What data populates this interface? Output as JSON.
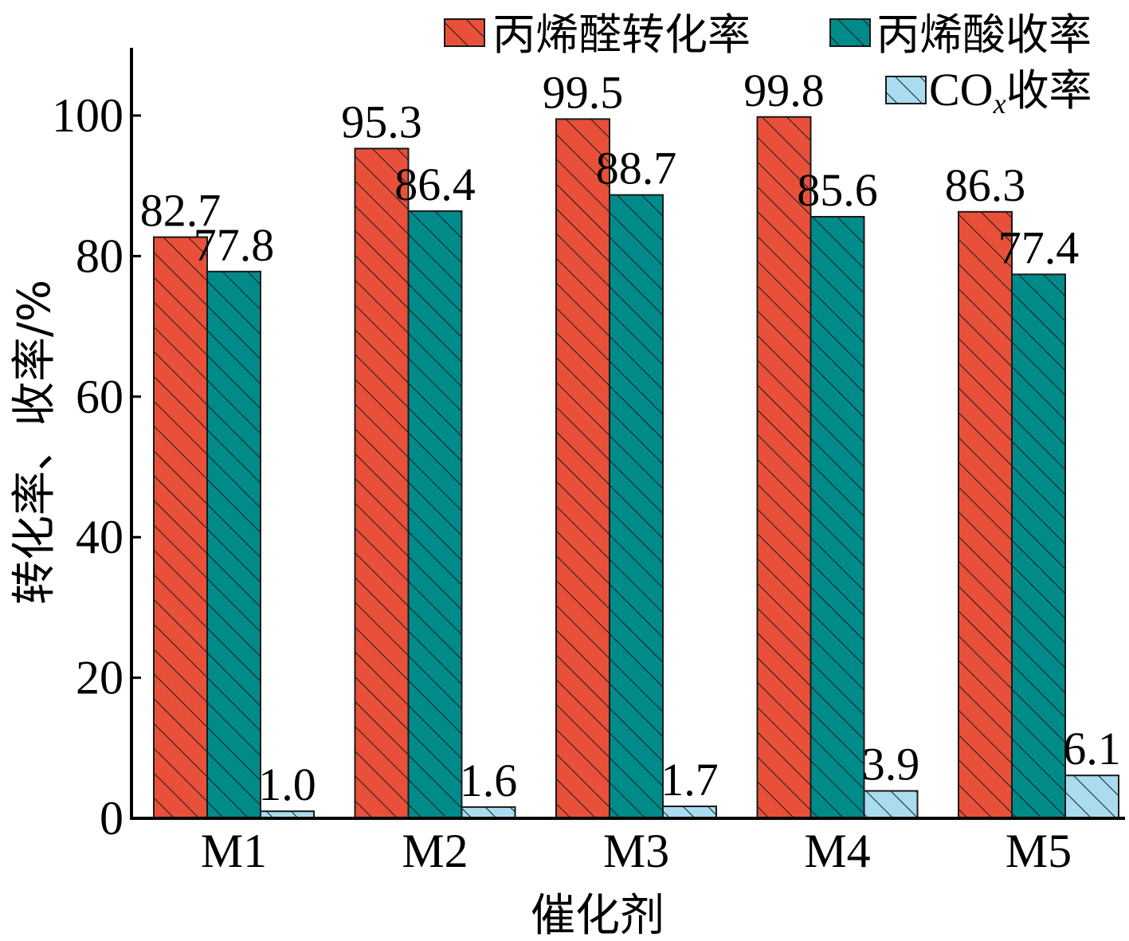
{
  "chart_data": {
    "type": "bar",
    "categories": [
      "M1",
      "M2",
      "M3",
      "M4",
      "M5"
    ],
    "series": [
      {
        "name": "丙烯醛转化率",
        "values": [
          82.7,
          95.3,
          99.5,
          99.8,
          86.3
        ],
        "color": "#e8503a"
      },
      {
        "name": "丙烯酸收率",
        "values": [
          77.8,
          86.4,
          88.7,
          85.6,
          77.4
        ],
        "color": "#008b8b"
      },
      {
        "name": "COx收率",
        "values": [
          1.0,
          1.6,
          1.7,
          3.9,
          6.1
        ],
        "color": "#a9dcef"
      }
    ],
    "data_labels": [
      [
        "82.7",
        "95.3",
        "99.5",
        "99.8",
        "86.3"
      ],
      [
        "77.8",
        "86.4",
        "88.7",
        "85.6",
        "77.4"
      ],
      [
        "1.0",
        "1.6",
        "1.7",
        "3.9",
        "6.1"
      ]
    ],
    "xlabel": "催化剂",
    "ylabel": "转化率、收率/%",
    "ylim": [
      0,
      110
    ],
    "yticks": [
      "0",
      "20",
      "40",
      "60",
      "80",
      "100"
    ],
    "grid": false,
    "legend_position": "top-right",
    "hatch": "diagonal"
  },
  "legend": {
    "items": [
      {
        "label": "丙烯醛转化率"
      },
      {
        "label": "丙烯酸收率"
      },
      {
        "label_main": "CO",
        "label_sub": "x",
        "label_tail": "收率"
      }
    ]
  }
}
